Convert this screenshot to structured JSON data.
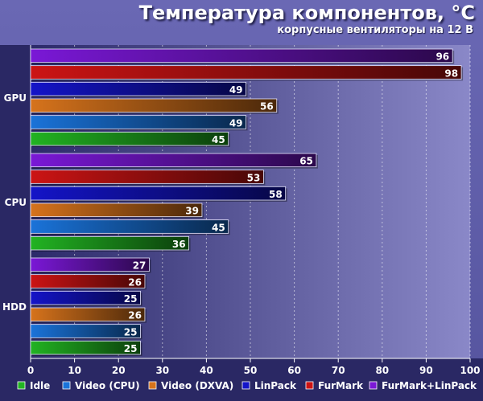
{
  "chart_data": {
    "type": "bar",
    "orientation": "horizontal",
    "title": "Температура компонентов, °C",
    "subtitle": "корпусные вентиляторы на 12 В",
    "categories": [
      "GPU",
      "CPU",
      "HDD"
    ],
    "series": [
      {
        "name": "Idle",
        "color": "#22b322",
        "values": [
          45,
          36,
          25
        ]
      },
      {
        "name": "Video (CPU)",
        "color": "#1a73d9",
        "values": [
          49,
          45,
          25
        ]
      },
      {
        "name": "Video (DXVA)",
        "color": "#d6731c",
        "values": [
          56,
          39,
          26
        ]
      },
      {
        "name": "LinPack",
        "color": "#1414c8",
        "values": [
          49,
          58,
          25
        ]
      },
      {
        "name": "FurMark",
        "color": "#cc1414",
        "values": [
          98,
          53,
          26
        ]
      },
      {
        "name": "FurMark+LinPack",
        "color": "#7a18d6",
        "values": [
          96,
          65,
          27
        ]
      }
    ],
    "xlim": [
      0,
      100
    ],
    "xticks": [
      0,
      10,
      20,
      30,
      40,
      50,
      60,
      70,
      80,
      90,
      100
    ],
    "grid": true,
    "legend": "bottom"
  }
}
